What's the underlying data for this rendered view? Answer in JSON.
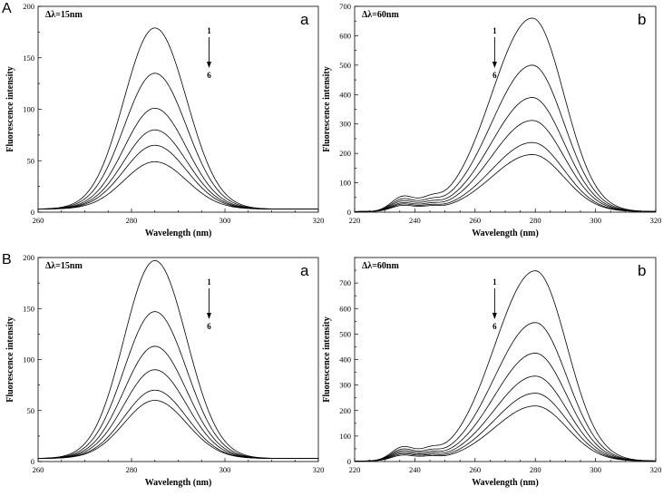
{
  "panel_labels": [
    "A",
    "B"
  ],
  "chart_data": [
    {
      "type": "line",
      "panel": "A",
      "sublabel": "a",
      "annotation": "Δλ=15nm",
      "arrow_top": "1",
      "arrow_bottom": "6",
      "xlabel": "Wavelength (nm)",
      "ylabel": "Fluorescence intensity",
      "xlim": [
        260,
        320
      ],
      "ylim": [
        0,
        200
      ],
      "xticks": [
        260,
        280,
        300,
        320
      ],
      "yticks": [
        0,
        50,
        100,
        150,
        200
      ],
      "peak_x": 285,
      "peaks": [
        179,
        135,
        101,
        80,
        65,
        49
      ],
      "baseline_left": 3,
      "baseline_right": 3
    },
    {
      "type": "line",
      "panel": "A",
      "sublabel": "b",
      "annotation": "Δλ=60nm",
      "arrow_top": "1",
      "arrow_bottom": "6",
      "xlabel": "Wavelength (nm)",
      "ylabel": "Fluorescence intensity",
      "xlim": [
        220,
        320
      ],
      "ylim": [
        0,
        700
      ],
      "xticks": [
        220,
        240,
        260,
        280,
        300,
        320
      ],
      "yticks": [
        0,
        100,
        200,
        300,
        400,
        500,
        600,
        700
      ],
      "peak_x": 279,
      "peaks": [
        660,
        500,
        390,
        312,
        237,
        196
      ],
      "minor_peak_x": 236,
      "minor_peaks": [
        48,
        40,
        34,
        28,
        24,
        20
      ],
      "baseline_left": 2,
      "baseline_right": 2
    },
    {
      "type": "line",
      "panel": "B",
      "sublabel": "a",
      "annotation": "Δλ=15nm",
      "arrow_top": "1",
      "arrow_bottom": "6",
      "xlabel": "Wavelength (nm)",
      "ylabel": "Fluorescence intensity",
      "xlim": [
        260,
        320
      ],
      "ylim": [
        0,
        200
      ],
      "xticks": [
        260,
        280,
        300,
        320
      ],
      "yticks": [
        0,
        50,
        100,
        150,
        200
      ],
      "peak_x": 285,
      "peaks": [
        197,
        147,
        113,
        90,
        70,
        60
      ],
      "baseline_left": 3,
      "baseline_right": 3
    },
    {
      "type": "line",
      "panel": "B",
      "sublabel": "b",
      "annotation": "Δλ=60nm",
      "arrow_top": "1",
      "arrow_bottom": "6",
      "xlabel": "Wavelength (nm)",
      "ylabel": "Fluorescence intensity",
      "xlim": [
        220,
        320
      ],
      "ylim": [
        0,
        800
      ],
      "xticks": [
        220,
        240,
        260,
        280,
        300,
        320
      ],
      "yticks": [
        0,
        100,
        200,
        300,
        400,
        500,
        600,
        700
      ],
      "peak_x": 280,
      "peaks": [
        748,
        545,
        425,
        335,
        268,
        218
      ],
      "minor_peak_x": 236,
      "minor_peaks": [
        52,
        44,
        38,
        32,
        27,
        22
      ],
      "baseline_left": 2,
      "baseline_right": 2
    }
  ]
}
